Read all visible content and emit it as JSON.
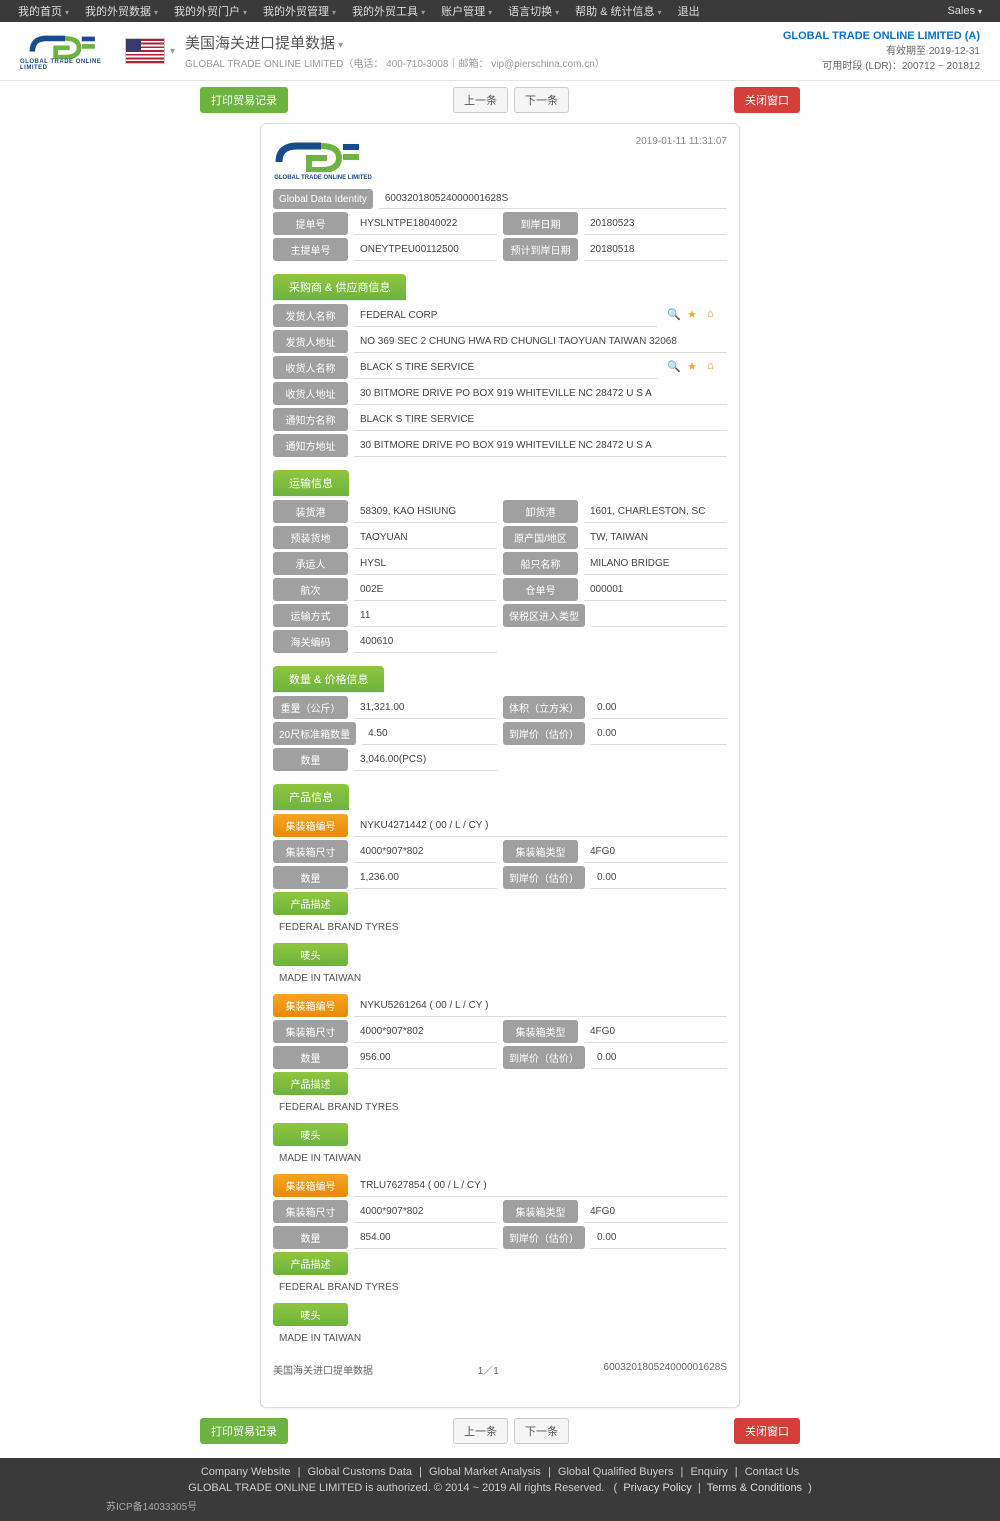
{
  "topnav": {
    "items": [
      "我的首页",
      "我的外贸数据",
      "我的外贸门户",
      "我的外贸管理",
      "我的外贸工具",
      "账户管理",
      "语言切换",
      "帮助 & 统计信息"
    ],
    "logout": "退出",
    "right": "Sales"
  },
  "header": {
    "title": "美国海关进口提单数据",
    "subtitle": "GLOBAL TRADE ONLINE LIMITED（电话： 400-710-3008｜邮箱： vip@pierschina.com.cn）",
    "company": "GLOBAL TRADE ONLINE LIMITED (A)",
    "expiry": "有效期至 2019-12-31",
    "ldr": "可用时段 (LDR)：200712 ~ 201812"
  },
  "toolbar": {
    "print": "打印贸易记录",
    "prev": "上一条",
    "next": "下一条",
    "close": "关闭窗口"
  },
  "meta": {
    "timestamp": "2019-01-11 11:31:07",
    "gdi_label": "Global Data Identity",
    "gdi": "600320180524000001628S",
    "bl_label": "提单号",
    "bl": "HYSLNTPE18040022",
    "arrive_label": "到岸日期",
    "arrive": "20180523",
    "master_label": "主提单号",
    "master": "ONEYTPEU00112500",
    "est_label": "预计到岸日期",
    "est": "20180518"
  },
  "sec_buyer": {
    "title": "采购商 & 供应商信息",
    "consignee_name_label": "发货人名称",
    "consignee_name": "FEDERAL CORP",
    "consignee_addr_label": "发货人地址",
    "consignee_addr": "NO 369 SEC 2 CHUNG HWA RD CHUNGLI TAOYUAN TAIWAN 32068",
    "buyer_name_label": "收货人名称",
    "buyer_name": "BLACK S TIRE SERVICE",
    "buyer_addr_label": "收货人地址",
    "buyer_addr": "30 BITMORE DRIVE PO BOX 919 WHITEVILLE NC 28472 U S A",
    "notify_name_label": "通知方名称",
    "notify_name": "BLACK S TIRE SERVICE",
    "notify_addr_label": "通知方地址",
    "notify_addr": "30 BITMORE DRIVE PO BOX 919 WHITEVILLE NC 28472 U S A"
  },
  "sec_ship": {
    "title": "运输信息",
    "load_port_label": "装货港",
    "load_port": "58309, KAO HSIUNG",
    "unload_port_label": "卸货港",
    "unload_port": "1601, CHARLESTON, SC",
    "preload_label": "预装货地",
    "preload": "TAOYUAN",
    "origin_label": "原产国/地区",
    "origin": "TW, TAIWAN",
    "carrier_label": "承运人",
    "carrier": "HYSL",
    "vessel_label": "船只名称",
    "vessel": "MILANO BRIDGE",
    "voyage_label": "航次",
    "voyage": "002E",
    "container_label": "仓单号",
    "container": "000001",
    "mode_label": "运输方式",
    "mode": "11",
    "bonded_label": "保税区进入类型",
    "bonded": "",
    "hs_label": "海关编码",
    "hs": "400610"
  },
  "sec_qty": {
    "title": "数量 & 价格信息",
    "weight_label": "重量（公斤）",
    "weight": "31,321.00",
    "volume_label": "体积（立方米）",
    "volume": "0.00",
    "teu_label": "20尺标准箱数量",
    "teu": "4.50",
    "price_label": "到岸价（估价）",
    "price": "0.00",
    "qty_label": "数量",
    "qty": "3,046.00(PCS)"
  },
  "sec_prod": {
    "title": "产品信息",
    "container_no_label": "集装箱编号",
    "size_label": "集装箱尺寸",
    "type_label": "集装箱类型",
    "qty_label": "数量",
    "price_label": "到岸价（估价）",
    "desc_label": "产品描述",
    "mark_label": "唛头",
    "items": [
      {
        "cno": "NYKU4271442 ( 00 / L / CY )",
        "size": "4000*907*802",
        "type": "4FG0",
        "qty": "1,236.00",
        "price": "0.00",
        "desc": "FEDERAL BRAND TYRES",
        "mark": "MADE IN TAIWAN"
      },
      {
        "cno": "NYKU5261264 ( 00 / L / CY )",
        "size": "4000*907*802",
        "type": "4FG0",
        "qty": "956.00",
        "price": "0.00",
        "desc": "FEDERAL BRAND TYRES",
        "mark": "MADE IN TAIWAN"
      },
      {
        "cno": "TRLU7627854 ( 00 / L / CY )",
        "size": "4000*907*802",
        "type": "4FG0",
        "qty": "854.00",
        "price": "0.00",
        "desc": "FEDERAL BRAND TYRES",
        "mark": "MADE IN TAIWAN"
      }
    ]
  },
  "card_foot": {
    "left": "美国海关进口提单数据",
    "mid": "1／1",
    "right": "600320180524000001628S"
  },
  "footer": {
    "links": [
      "Company Website",
      "Global Customs Data",
      "Global Market Analysis",
      "Global Qualified Buyers",
      "Enquiry",
      "Contact Us"
    ],
    "copyright_a": "GLOBAL TRADE ONLINE LIMITED is authorized. © 2014 ~ 2019 All rights Reserved.",
    "copyright_b": "Privacy Policy",
    "copyright_c": "Terms & Conditions",
    "icp": "苏ICP备14033305号"
  }
}
